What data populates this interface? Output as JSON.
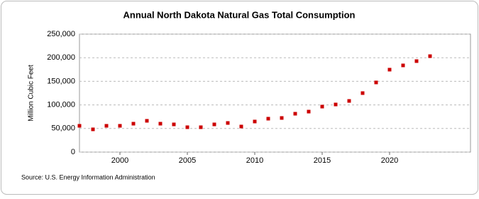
{
  "chart_data": {
    "type": "scatter",
    "title": "Annual North Dakota Natural Gas Total Consumption",
    "y_label": "Million Cubic Feet",
    "source": "Source: U.S. Energy Information Administration",
    "color": "#cc0000",
    "grid": true,
    "x": [
      1997,
      1998,
      1999,
      2000,
      2001,
      2002,
      2003,
      2004,
      2005,
      2006,
      2007,
      2008,
      2009,
      2010,
      2011,
      2012,
      2013,
      2014,
      2015,
      2016,
      2017,
      2018,
      2019,
      2020,
      2021,
      2022,
      2023
    ],
    "values": [
      55700,
      48200,
      55700,
      55700,
      60200,
      66300,
      60200,
      58700,
      52700,
      52700,
      58700,
      61700,
      54200,
      64800,
      70800,
      72300,
      81300,
      85800,
      96400,
      100900,
      108400,
      125000,
      147600,
      174700,
      183700,
      192800,
      203300
    ],
    "xlim": [
      1997,
      2026
    ],
    "xticks": [
      2000,
      2005,
      2010,
      2015,
      2020
    ],
    "ylim": [
      0,
      250000
    ],
    "yticks": [
      0,
      {
        "value": 50000,
        "label": "50,000"
      },
      {
        "value": 100000,
        "label": "100,000"
      },
      {
        "value": 150000,
        "label": "150,000"
      },
      {
        "value": 200000,
        "label": "200,000"
      },
      {
        "value": 250000,
        "label": "250,000"
      }
    ]
  }
}
